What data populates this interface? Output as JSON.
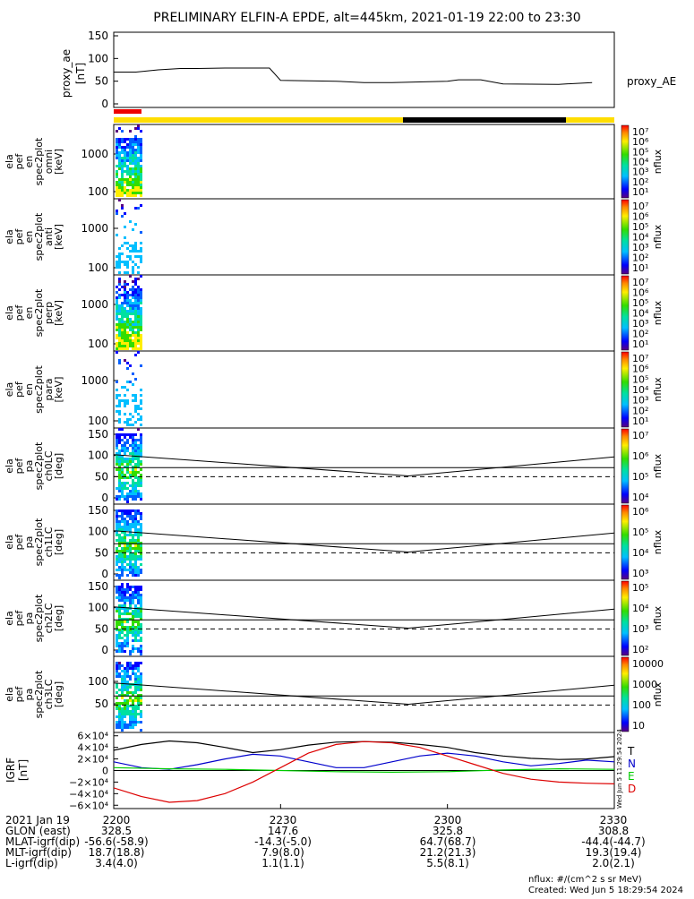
{
  "title": "PRELIMINARY ELFIN-A EPDE, alt=445km, 2021-01-19 22:00 to 23:30",
  "proxy_ae_label": "proxy_AE",
  "colors": {
    "yellow_bar": "#ffdd00",
    "black_bar": "#000000",
    "red_bar": "#ee0000",
    "igrf_T": "#000000",
    "igrf_N": "#0000cc",
    "igrf_E": "#00cc00",
    "igrf_D": "#dd0000"
  },
  "panels": [
    {
      "ylabel": [
        "ela",
        "pef",
        "en",
        "spec2plot",
        "omni",
        "[keV]"
      ],
      "yticks": [
        "1000",
        "100"
      ],
      "cbar_ticks": [
        "10⁷",
        "10⁶",
        "10⁵",
        "10⁴",
        "10³",
        "10²",
        "10¹"
      ],
      "cbar_label": "nflux"
    },
    {
      "ylabel": [
        "ela",
        "pef",
        "en",
        "spec2plot",
        "anti",
        "[keV]"
      ],
      "yticks": [
        "1000",
        "100"
      ],
      "cbar_ticks": [
        "10⁷",
        "10⁶",
        "10⁵",
        "10⁴",
        "10³",
        "10²",
        "10¹"
      ],
      "cbar_label": "nflux"
    },
    {
      "ylabel": [
        "ela",
        "pef",
        "en",
        "spec2plot",
        "perp",
        "[keV]"
      ],
      "yticks": [
        "1000",
        "100"
      ],
      "cbar_ticks": [
        "10⁷",
        "10⁶",
        "10⁵",
        "10⁴",
        "10³",
        "10²",
        "10¹"
      ],
      "cbar_label": "nflux"
    },
    {
      "ylabel": [
        "ela",
        "pef",
        "en",
        "spec2plot",
        "para",
        "[keV]"
      ],
      "yticks": [
        "1000",
        "100"
      ],
      "cbar_ticks": [
        "10⁷",
        "10⁶",
        "10⁵",
        "10⁴",
        "10³",
        "10²",
        "10¹"
      ],
      "cbar_label": "nflux"
    },
    {
      "ylabel": [
        "ela",
        "pef",
        "pa",
        "spec2plot",
        "ch0LC",
        "[deg]"
      ],
      "yticks": [
        "150",
        "100",
        "50",
        "0"
      ],
      "cbar_ticks": [
        "10⁷",
        "10⁶",
        "10⁵",
        "10⁴"
      ],
      "cbar_label": "nflux"
    },
    {
      "ylabel": [
        "ela",
        "pef",
        "pa",
        "spec2plot",
        "ch1LC",
        "[deg]"
      ],
      "yticks": [
        "150",
        "100",
        "50",
        "0"
      ],
      "cbar_ticks": [
        "10⁶",
        "10⁵",
        "10⁴",
        "10³"
      ],
      "cbar_label": "nflux"
    },
    {
      "ylabel": [
        "ela",
        "pef",
        "pa",
        "spec2plot",
        "ch2LC",
        "[deg]"
      ],
      "yticks": [
        "150",
        "100",
        "50",
        "0"
      ],
      "cbar_ticks": [
        "10⁵",
        "10⁴",
        "10³",
        "10²"
      ],
      "cbar_label": "nflux"
    },
    {
      "ylabel": [
        "ela",
        "pef",
        "pa",
        "spec2plot",
        "ch3LC",
        "[deg]"
      ],
      "yticks": [
        "100",
        "50"
      ],
      "cbar_ticks": [
        "10000",
        "1000",
        "100",
        "10"
      ],
      "cbar_label": "nflux"
    }
  ],
  "igrf": {
    "ylabel": [
      "IGRF",
      "[nT]"
    ],
    "yticks": [
      "6×10⁴",
      "4×10⁴",
      "2×10⁴",
      "0",
      "−2×10⁴",
      "−4×10⁴",
      "−6×10⁴"
    ],
    "legend": [
      "T",
      "N",
      "E",
      "D"
    ],
    "side_note": "Wed Jun  5 11:29:54 2024"
  },
  "chart_data": [
    {
      "type": "line",
      "name": "proxy_ae",
      "ylabel": "proxy_ae [nT]",
      "ylim": [
        0,
        150
      ],
      "yticks": [
        "150",
        "100",
        "50",
        "0"
      ],
      "x_minutes": [
        0,
        4,
        8,
        12,
        15,
        20,
        28,
        30,
        40,
        45,
        50,
        60,
        62,
        66,
        70,
        80,
        86
      ],
      "values": [
        70,
        70,
        75,
        78,
        78,
        79,
        79,
        52,
        50,
        47,
        47,
        50,
        53,
        53,
        44,
        43,
        47
      ]
    },
    {
      "type": "line",
      "name": "IGRF",
      "xlim_minutes": [
        0,
        90
      ],
      "ylim": [
        -65000,
        65000
      ],
      "series": [
        {
          "name": "T",
          "x": [
            0,
            5,
            10,
            15,
            20,
            25,
            30,
            35,
            40,
            45,
            50,
            55,
            60,
            65,
            70,
            75,
            80,
            85,
            90
          ],
          "values": [
            35000,
            45000,
            51000,
            48000,
            40000,
            31000,
            36000,
            44000,
            49000,
            50000,
            49000,
            45000,
            40000,
            31000,
            25000,
            21000,
            19000,
            20000,
            24000
          ]
        },
        {
          "name": "N",
          "x": [
            0,
            5,
            10,
            15,
            20,
            25,
            30,
            35,
            40,
            45,
            50,
            55,
            60,
            65,
            70,
            75,
            80,
            85,
            90
          ],
          "values": [
            15000,
            5000,
            2000,
            10000,
            20000,
            28000,
            25000,
            15000,
            5000,
            5000,
            15000,
            25000,
            30000,
            25000,
            15000,
            8000,
            12000,
            18000,
            15000
          ]
        },
        {
          "name": "E",
          "x": [
            0,
            10,
            20,
            30,
            40,
            50,
            60,
            70,
            80,
            90
          ],
          "values": [
            5000,
            3000,
            2000,
            0,
            -2000,
            -3000,
            -2000,
            1000,
            3000,
            2000
          ]
        },
        {
          "name": "D",
          "x": [
            0,
            5,
            10,
            15,
            20,
            25,
            30,
            35,
            40,
            45,
            50,
            55,
            60,
            65,
            70,
            75,
            80,
            85,
            90
          ],
          "values": [
            -30000,
            -45000,
            -55000,
            -52000,
            -40000,
            -20000,
            5000,
            30000,
            45000,
            50000,
            48000,
            40000,
            25000,
            10000,
            -5000,
            -15000,
            -20000,
            -22000,
            -23000
          ]
        }
      ]
    }
  ],
  "xaxis": {
    "row_labels": [
      "2021 Jan 19",
      "GLON (east)",
      "MLAT-igrf(dip)",
      "MLT-igrf(dip)",
      "L-igrf(dip)"
    ],
    "columns": [
      {
        "time": "2200",
        "values": [
          "328.5",
          "-56.6(-58.9)",
          "18.7(18.8)",
          "3.4(4.0)"
        ]
      },
      {
        "time": "2230",
        "values": [
          "147.6",
          "-14.3(-5.0)",
          "7.9(8.0)",
          "1.1(1.1)"
        ]
      },
      {
        "time": "2300",
        "values": [
          "325.8",
          "64.7(68.7)",
          "21.2(21.3)",
          "5.5(8.1)"
        ]
      },
      {
        "time": "2330",
        "values": [
          "308.8",
          "-44.4(-44.7)",
          "19.3(19.4)",
          "2.0(2.1)"
        ]
      }
    ]
  },
  "footer": {
    "units": "nflux: #/(cm^2 s sr MeV)",
    "created": "Created: Wed Jun  5 18:29:54 2024"
  }
}
